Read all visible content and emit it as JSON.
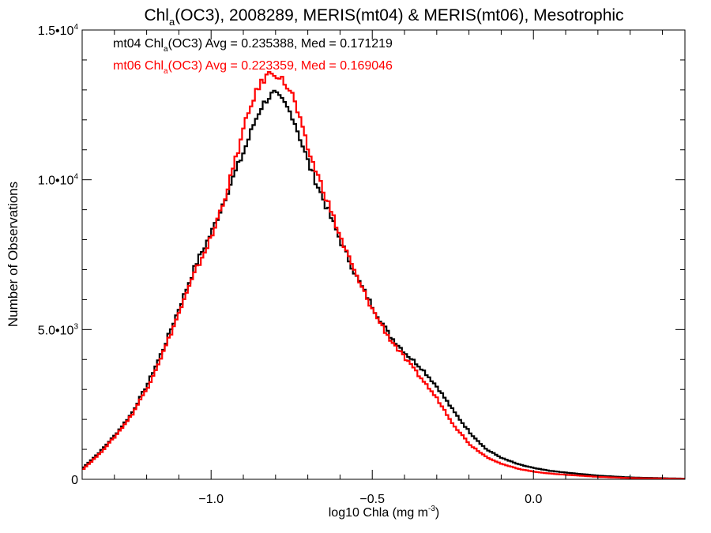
{
  "chart_data": {
    "type": "line",
    "title": {
      "prefix": "Chl",
      "sub": "a",
      "rest": "(OC3), 2008289, MERIS(mt04) & MERIS(mt06), Mesotrophic"
    },
    "xlabel": {
      "text": "log10 Chla (mg m",
      "sup": "-3",
      "close": ")"
    },
    "ylabel": "Number of Observations",
    "xlim": [
      -1.4,
      0.47
    ],
    "ylim": [
      0,
      15000
    ],
    "x_ticks": [
      {
        "value": -1.0,
        "label": "−1.0"
      },
      {
        "value": -0.5,
        "label": "−0.5"
      },
      {
        "value": 0.0,
        "label": "0.0"
      }
    ],
    "x_minor_step": 0.1,
    "y_ticks": [
      {
        "value": 0,
        "mant": "0",
        "exp": ""
      },
      {
        "value": 5000,
        "mant": "5.0•10",
        "exp": "3"
      },
      {
        "value": 10000,
        "mant": "1.0•10",
        "exp": "4"
      },
      {
        "value": 15000,
        "mant": "1.5•10",
        "exp": "4"
      }
    ],
    "y_minor_step": 1000,
    "grid": false,
    "legend": [
      {
        "pre": "mt04 Chl",
        "sub": "a",
        "post": "(OC3) Avg = 0.235388, Med = 0.171219",
        "color": "#000000"
      },
      {
        "pre": "mt06 Chl",
        "sub": "a",
        "post": "(OC3) Avg = 0.223359, Med = 0.169046",
        "color": "#ff0000"
      }
    ],
    "series": [
      {
        "name": "mt04",
        "color": "#000000",
        "x": [
          -1.4,
          -1.35,
          -1.3,
          -1.25,
          -1.2,
          -1.15,
          -1.1,
          -1.05,
          -1.0,
          -0.95,
          -0.9,
          -0.87,
          -0.85,
          -0.83,
          -0.81,
          -0.78,
          -0.75,
          -0.7,
          -0.65,
          -0.6,
          -0.55,
          -0.5,
          -0.45,
          -0.4,
          -0.35,
          -0.3,
          -0.25,
          -0.2,
          -0.15,
          -0.1,
          -0.05,
          0.0,
          0.05,
          0.1,
          0.2,
          0.3,
          0.47
        ],
        "values": [
          400,
          900,
          1500,
          2200,
          3200,
          4400,
          5800,
          7200,
          8300,
          9700,
          11000,
          11900,
          12400,
          12700,
          12900,
          12600,
          12100,
          10500,
          9200,
          7900,
          6700,
          5700,
          4800,
          4200,
          3700,
          3050,
          2250,
          1550,
          1000,
          700,
          500,
          370,
          280,
          220,
          120,
          60,
          20
        ]
      },
      {
        "name": "mt06",
        "color": "#ff0000",
        "x": [
          -1.4,
          -1.35,
          -1.3,
          -1.25,
          -1.2,
          -1.15,
          -1.1,
          -1.05,
          -1.0,
          -0.95,
          -0.9,
          -0.87,
          -0.85,
          -0.83,
          -0.81,
          -0.78,
          -0.75,
          -0.7,
          -0.65,
          -0.6,
          -0.55,
          -0.5,
          -0.45,
          -0.4,
          -0.35,
          -0.3,
          -0.25,
          -0.2,
          -0.15,
          -0.1,
          -0.05,
          0.0,
          0.05,
          0.1,
          0.2,
          0.3,
          0.47
        ],
        "values": [
          350,
          850,
          1450,
          2150,
          3100,
          4300,
          5650,
          7000,
          8150,
          9800,
          11800,
          12800,
          13200,
          13500,
          13600,
          13300,
          12800,
          10900,
          9500,
          8000,
          6700,
          5600,
          4700,
          4000,
          3350,
          2650,
          1800,
          1150,
          750,
          500,
          350,
          250,
          190,
          150,
          80,
          40,
          15
        ]
      }
    ]
  }
}
